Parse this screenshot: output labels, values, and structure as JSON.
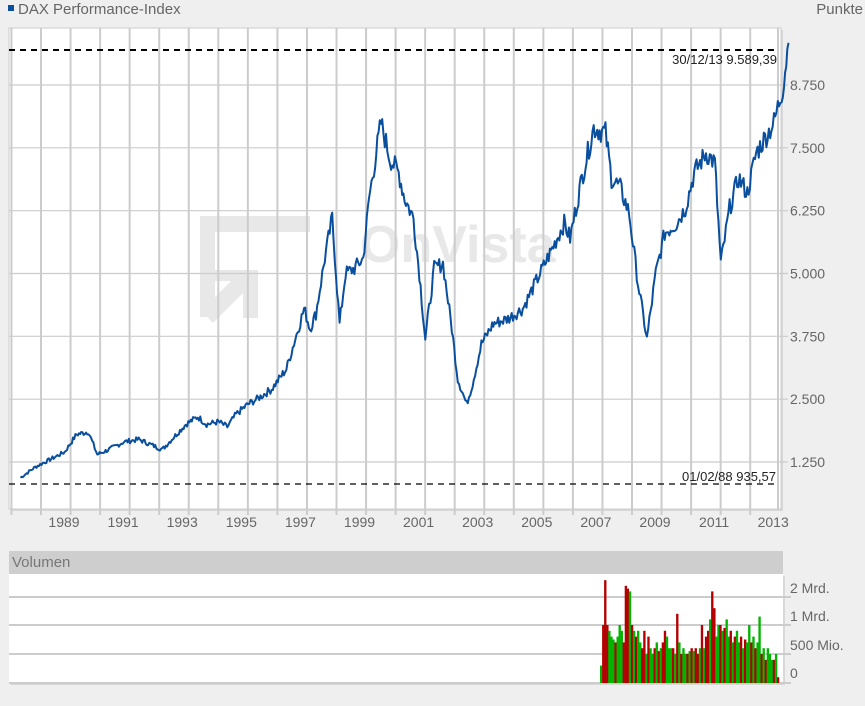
{
  "header": {
    "legend_label": "DAX Performance-Index",
    "legend_color": "#0a4f9e",
    "unit_label": "Punkte"
  },
  "watermark": "OnVista",
  "annotations": {
    "high": {
      "date": "30/12/13",
      "value": "9.589,39"
    },
    "low": {
      "date": "01/02/88",
      "value": "935,57"
    }
  },
  "volume_panel": {
    "title": "Volumen",
    "y_ticks": [
      "2 Mrd.",
      "1 Mrd.",
      "500 Mio.",
      "0"
    ],
    "up_color": "#00b400",
    "down_color": "#b40000"
  },
  "chart_data": [
    {
      "type": "line",
      "title": "DAX Performance-Index",
      "xlabel": "",
      "ylabel": "Punkte",
      "x_tick_labels": [
        "1989",
        "1991",
        "1993",
        "1995",
        "1997",
        "1999",
        "2001",
        "2003",
        "2005",
        "2007",
        "2009",
        "2011",
        "2013"
      ],
      "y_tick_labels": [
        "1.250",
        "2.500",
        "3.750",
        "5.000",
        "6.250",
        "7.500",
        "8.750"
      ],
      "ylim": [
        650,
        9800
      ],
      "grid": true,
      "legend_position": "top-left",
      "series": [
        {
          "name": "DAX Performance-Index",
          "color": "#0a4f9e",
          "x": [
            1988.0,
            1988.5,
            1989.0,
            1989.5,
            1989.9,
            1990.3,
            1990.6,
            1990.8,
            1991.0,
            1991.5,
            1992.0,
            1992.4,
            1992.8,
            1993.2,
            1993.6,
            1994.0,
            1994.3,
            1994.7,
            1995.0,
            1995.3,
            1995.7,
            1996.0,
            1996.5,
            1997.0,
            1997.3,
            1997.6,
            1997.8,
            1998.0,
            1998.3,
            1998.55,
            1998.8,
            1999.0,
            1999.3,
            1999.6,
            1999.8,
            2000.2,
            2000.5,
            2000.8,
            2001.0,
            2001.3,
            2001.5,
            2001.7,
            2002.0,
            2002.3,
            2002.6,
            2002.8,
            2003.1,
            2003.3,
            2003.6,
            2004.0,
            2004.5,
            2005.0,
            2005.5,
            2006.0,
            2006.4,
            2006.6,
            2007.0,
            2007.4,
            2007.8,
            2008.0,
            2008.3,
            2008.6,
            2008.9,
            2009.2,
            2009.5,
            2009.8,
            2010.2,
            2010.5,
            2010.8,
            2011.2,
            2011.5,
            2011.7,
            2012.0,
            2012.3,
            2012.6,
            2012.9,
            2013.2,
            2013.5,
            2013.8,
            2013.99
          ],
          "values": [
            935.57,
            1150,
            1300,
            1450,
            1800,
            1850,
            1400,
            1450,
            1500,
            1650,
            1700,
            1600,
            1500,
            1750,
            2000,
            2150,
            2000,
            2050,
            1950,
            2200,
            2400,
            2500,
            2700,
            3100,
            3700,
            4300,
            3900,
            4200,
            5300,
            6100,
            4000,
            5000,
            5100,
            5300,
            6500,
            8000,
            7300,
            7000,
            6500,
            6100,
            5000,
            3700,
            5100,
            5200,
            3900,
            2900,
            2400,
            2800,
            3600,
            4000,
            4100,
            4300,
            4900,
            5500,
            6000,
            5700,
            6900,
            7900,
            7800,
            6900,
            6700,
            6200,
            4800,
            3700,
            5000,
            5800,
            6000,
            6300,
            7000,
            7400,
            7200,
            5200,
            6300,
            6900,
            6600,
            7400,
            7700,
            8000,
            8700,
            9589.39
          ]
        }
      ],
      "annotations": [
        {
          "text": "30/12/13  9.589,39",
          "type": "max-line",
          "value": 9589.39
        },
        {
          "text": "01/02/88  935,57",
          "type": "min-line",
          "value": 935.57
        }
      ]
    },
    {
      "type": "bar",
      "title": "Volumen",
      "y_tick_labels": [
        "0",
        "500 Mio.",
        "1 Mrd.",
        "2 Mrd."
      ],
      "note": "Volume bars shown only from ~2008 onward; green = up, red = down",
      "x_range": [
        2008.1,
        2014.0
      ],
      "values_mrd": [
        0.3,
        1.0,
        2.6,
        1.0,
        0.9,
        0.8,
        0.75,
        0.7,
        0.8,
        1.0,
        0.9,
        0.7,
        2.4,
        2.3,
        2.2,
        1.0,
        0.9,
        0.8,
        0.9,
        0.7,
        0.6,
        0.9,
        0.5,
        0.8,
        0.6,
        0.5,
        0.6,
        0.7,
        0.55,
        0.6,
        0.7,
        0.9,
        0.8,
        0.6,
        0.6,
        0.6,
        0.5,
        1.4,
        0.7,
        0.5,
        0.6,
        0.5,
        0.5,
        0.55,
        0.6,
        0.55,
        0.6,
        0.5,
        0.6,
        1.0,
        0.6,
        0.8,
        0.9,
        1.2,
        2.2,
        1.6,
        0.8,
        1.0,
        1.0,
        0.9,
        0.95,
        1.2,
        0.8,
        0.9,
        0.7,
        0.8,
        0.9,
        0.7,
        0.8,
        0.6,
        0.75,
        0.7,
        1.0,
        0.7,
        0.8,
        0.6,
        0.7,
        1.3,
        0.5,
        0.6,
        0.4,
        0.6,
        0.5,
        0.4,
        0.4,
        0.5,
        0.1
      ],
      "colors": [
        "g",
        "r",
        "r",
        "r",
        "g",
        "g",
        "g",
        "r",
        "g",
        "g",
        "g",
        "r",
        "r",
        "r",
        "g",
        "r",
        "g",
        "r",
        "g",
        "g",
        "r",
        "r",
        "g",
        "r",
        "g",
        "g",
        "r",
        "g",
        "r",
        "g",
        "r",
        "r",
        "g",
        "g",
        "g",
        "r",
        "g",
        "r",
        "g",
        "r",
        "g",
        "g",
        "r",
        "g",
        "r",
        "g",
        "r",
        "r",
        "g",
        "r",
        "g",
        "r",
        "r",
        "g",
        "r",
        "r",
        "g",
        "g",
        "r",
        "g",
        "r",
        "g",
        "g",
        "r",
        "g",
        "r",
        "g",
        "g",
        "r",
        "g",
        "r",
        "g",
        "g",
        "r",
        "g",
        "r",
        "g",
        "g",
        "r",
        "g",
        "r",
        "g",
        "g",
        "g",
        "r",
        "g",
        "r"
      ]
    }
  ]
}
